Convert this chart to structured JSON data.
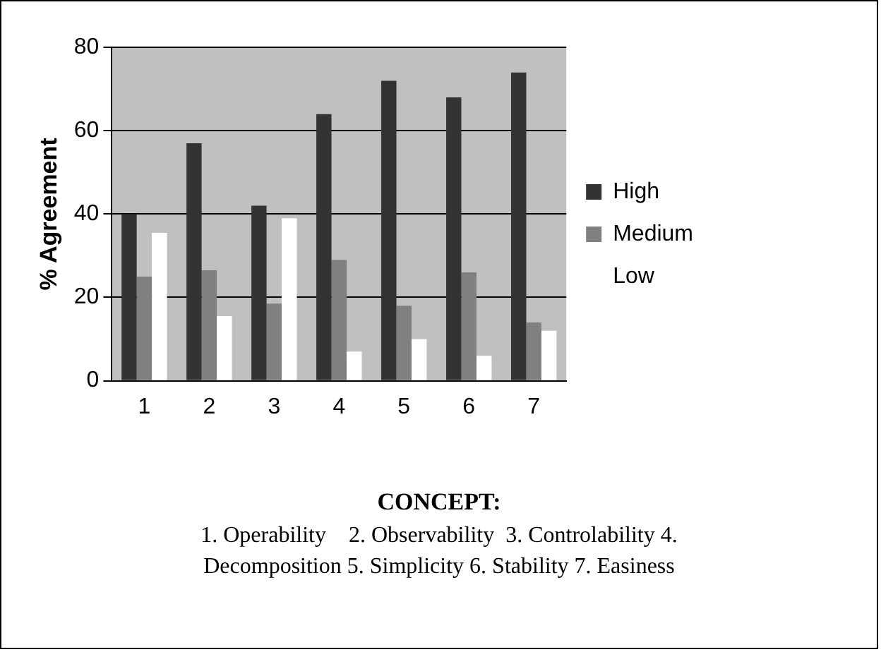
{
  "chart_data": {
    "type": "bar",
    "categories": [
      "1",
      "2",
      "3",
      "4",
      "5",
      "6",
      "7"
    ],
    "series": [
      {
        "name": "High",
        "color": "#333333",
        "values": [
          40,
          57,
          42,
          64,
          72,
          68,
          74
        ]
      },
      {
        "name": "Medium",
        "color": "#808080",
        "values": [
          25,
          26.5,
          18.5,
          29,
          18,
          26,
          14
        ]
      },
      {
        "name": "Low",
        "color": "#ffffff",
        "values": [
          35.5,
          15.5,
          39,
          7,
          10,
          6,
          12
        ]
      }
    ],
    "ylabel": "% Agreement",
    "xlabel": "CONCEPT:",
    "annotations": [
      "1. Operability    2. Observability  3. Controlability 4. Decomposition 5. Simplicity 6. Stability 7. Easiness"
    ],
    "ylim": [
      0,
      80
    ],
    "yticks": [
      0,
      20,
      40,
      60,
      80
    ],
    "grid": "y",
    "legend": "right"
  }
}
